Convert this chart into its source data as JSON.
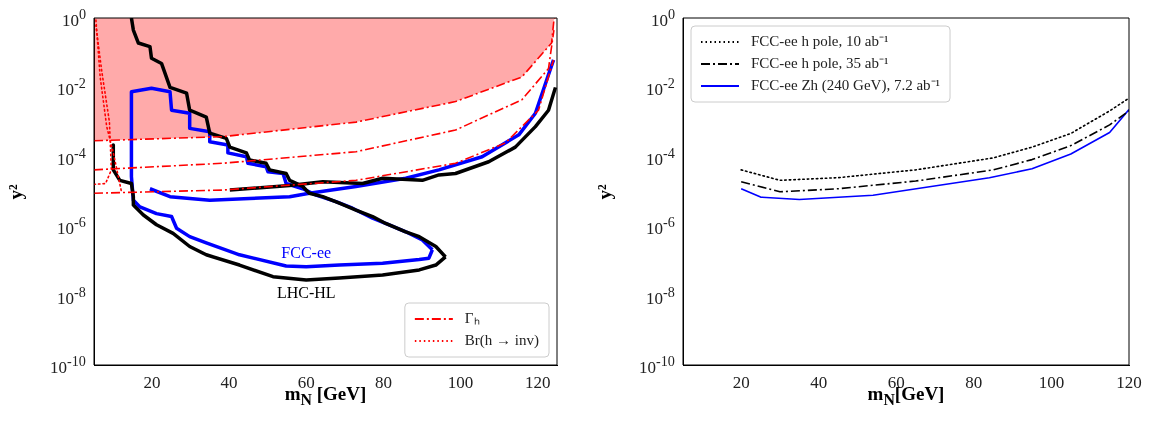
{
  "chart_data": [
    {
      "type": "line",
      "xlabel": "m$_{N}$ [GeV]",
      "ylabel": "y²",
      "log": "y",
      "legend": "bottom right",
      "xlim": [
        5,
        125
      ],
      "xticks": [
        20,
        40,
        60,
        80,
        100,
        120
      ],
      "ylim": [
        1e-10,
        1
      ],
      "yticks": [
        {
          "value": 1,
          "label": "10$^{0}$"
        },
        {
          "value": 0.01,
          "label": "10$^{-2}$"
        },
        {
          "value": 0.0001,
          "label": "10$^{-4}$"
        },
        {
          "value": 1e-06,
          "label": "10$^{-6}$"
        },
        {
          "value": 1e-08,
          "label": "10$^{-8}$"
        },
        {
          "value": 1e-10,
          "label": "10$^{-10}$"
        }
      ],
      "annotations": [
        {
          "text": "FCC-ee",
          "x": 60,
          "y": 6.8e-08
        },
        {
          "text": "LHC-HL",
          "x": 60,
          "y": 2.8e-08
        }
      ],
      "series": [
        {
          "name": "Γₕ",
          "color": "#ff0000",
          "line_style": "dashdot",
          "x": [
            5,
            38.3,
            72.9,
            98.7,
            115.9,
            123.6,
            124.2,
            124.5
          ],
          "values": [
            0.00029,
            0.00038,
            0.001,
            0.0039,
            0.02,
            0.19,
            0.87,
            1
          ],
          "lower": [
            0.00029,
            0.00038,
            0.001,
            0.0039,
            0.02,
            0.19,
            0.87,
            1
          ],
          "upper": [
            1,
            1,
            1,
            1,
            1,
            1,
            1,
            1
          ]
        },
        {
          "color": "#ff0000",
          "line_style": "dashdot",
          "x": [
            5,
            38.3,
            72.9,
            98.7,
            115.9,
            122.8,
            124.2
          ],
          "values": [
            4.2e-05,
            6.5e-05,
            0.00014,
            0.00059,
            0.0044,
            0.035,
            0.45
          ]
        },
        {
          "color": "#ff0000",
          "line_style": "dashdot",
          "x": [
            5,
            38.3,
            72.9,
            98.7,
            111.6,
            120.2,
            124.1
          ],
          "values": [
            8.9e-06,
            1.1e-05,
            2.1e-05,
            6.5e-05,
            0.00025,
            0.0022,
            0.062
          ]
        },
        {
          "name": "Br(h → inv)",
          "color": "#ff0000",
          "line_style": "dotted",
          "x": [
            5.5,
            6.6,
            8.3,
            10,
            11.3,
            12.2
          ],
          "values": [
            0.87,
            0.02,
            0.00074,
            0.00013,
            2.7e-05,
            8.9e-06
          ]
        },
        {
          "color": "#ff0000",
          "line_style": "dotted",
          "x": [
            5,
            8,
            9.5,
            9,
            7,
            5.5
          ],
          "values": [
            1.6e-05,
            1.7e-05,
            4.2e-05,
            0.001,
            0.03,
            0.6
          ]
        },
        {
          "color": "#000000",
          "line_style": "solid",
          "x": [
            14.7,
            15.2,
            16.5,
            19.5,
            19.9,
            22.5,
            24.7,
            29,
            29.8,
            34.1,
            35,
            39.3,
            40.2,
            44.5,
            45.3,
            49.6,
            50.5,
            54.8,
            55.7,
            59.1,
            60.8,
            64.3,
            68.6,
            72.9,
            77.2,
            80.6,
            85.8,
            89.3,
            93.6,
            96.1
          ],
          "values": [
            1,
            0.45,
            0.19,
            0.15,
            0.069,
            0.049,
            0.01,
            0.0068,
            0.0022,
            0.0014,
            0.00048,
            0.00034,
            0.00019,
            0.00013,
            8.1e-05,
            6.5e-05,
            4.2e-05,
            3.3e-05,
            2.1e-05,
            1.4e-05,
            8.9e-06,
            7.1e-06,
            4.6e-06,
            2.9e-06,
            1.9e-06,
            1.2e-06,
            6.9e-07,
            5e-07,
            2.6e-07,
            1.3e-07
          ]
        },
        {
          "color": "#000000",
          "line_style": "solid",
          "x": [
            10,
            10,
            11.7,
            14.7,
            15.2,
            15.2,
            17.8,
            21.2,
            25.5,
            29.8,
            34.1,
            42.7,
            51.4,
            60,
            68.6,
            79.8,
            89.3,
            93.6,
            96.1
          ],
          "values": [
            0.00022,
            4.2e-05,
            2.1e-05,
            1.7e-05,
            7.1e-06,
            4.1e-06,
            2.1e-06,
            1.1e-06,
            6.2e-07,
            2.6e-07,
            1.5e-07,
            7.6e-08,
            3.5e-08,
            2.8e-08,
            3.2e-08,
            3.9e-08,
            5.5e-08,
            7.6e-08,
            1.3e-07
          ]
        },
        {
          "color": "#000000",
          "line_style": "solid",
          "x": [
            40.2,
            55.7,
            64.3,
            74.6,
            79.8,
            90.1,
            94.4,
            98.7,
            107.3,
            114.2,
            119.4,
            122.8,
            124.6
          ],
          "values": [
            1.1e-05,
            1.5e-05,
            1.9e-05,
            1.7e-05,
            2.4e-05,
            2.1e-05,
            3e-05,
            3.3e-05,
            7.2e-05,
            0.00019,
            0.00074,
            0.0022,
            0.01
          ]
        },
        {
          "color": "#0000ff",
          "line_style": "solid",
          "x": [
            14.7,
            19.9,
            24.7,
            25.1,
            29.8,
            29.8,
            35,
            35,
            39.7,
            39.7,
            44.5,
            44.9,
            49.6,
            50.1,
            54,
            54.8,
            59.1,
            62.6,
            67.7,
            72,
            77.2,
            81.5,
            85.8,
            90.1,
            92.7
          ],
          "values": [
            0.0075,
            0.0094,
            0.0075,
            0.0022,
            0.0018,
            0.00066,
            0.00053,
            0.00027,
            0.00022,
            0.00013,
            0.0001,
            6.5e-05,
            5.2e-05,
            3.7e-05,
            3.3e-05,
            1.7e-05,
            1.2e-05,
            7.9e-06,
            5.1e-06,
            3.3e-06,
            1.7e-06,
            1.1e-06,
            6.9e-07,
            4e-07,
            2.1e-07
          ]
        },
        {
          "color": "#0000ff",
          "line_style": "solid",
          "x": [
            14.7,
            14.7,
            15.2,
            16.9,
            21.2,
            25.1,
            26.4,
            29.8,
            34.1,
            42.7,
            54.8,
            60,
            68.6,
            79.8,
            89.3,
            91.8,
            92.7
          ],
          "values": [
            0.0075,
            2.7e-05,
            5.6e-06,
            3.6e-06,
            2.3e-06,
            1.9e-06,
            8.7e-07,
            5e-07,
            3.3e-07,
            1.5e-07,
            7.1e-08,
            6.8e-08,
            7.6e-08,
            8.6e-08,
            1.1e-07,
            1.2e-07,
            2.1e-07
          ]
        },
        {
          "color": "#0000ff",
          "line_style": "solid",
          "x": [
            19.5,
            24.7,
            35,
            45.3,
            55.7,
            60.8,
            72.9,
            85.8,
            94.4,
            105.6,
            115.1,
            119.4,
            124.1
          ],
          "values": [
            1.2e-05,
            7.1e-06,
            5.6e-06,
            6.3e-06,
            7.1e-06,
            8.9e-06,
            1.4e-05,
            2.4e-05,
            4.2e-05,
            0.0001,
            0.00043,
            0.0018,
            0.062
          ]
        }
      ]
    },
    {
      "type": "line",
      "xlabel": "m$_{N}$[GeV]",
      "ylabel": "y²",
      "log": "y",
      "legend": "top left",
      "xlim": [
        5,
        120
      ],
      "xticks": [
        20,
        40,
        60,
        80,
        100,
        120
      ],
      "ylim": [
        1e-10,
        1
      ],
      "yticks": [
        {
          "value": 1,
          "label": "10$^{0}$"
        },
        {
          "value": 0.01,
          "label": "10$^{-2}$"
        },
        {
          "value": 0.0001,
          "label": "10$^{-4}$"
        },
        {
          "value": 1e-06,
          "label": "10$^{-6}$"
        },
        {
          "value": 1e-08,
          "label": "10$^{-8}$"
        },
        {
          "value": 1e-10,
          "label": "10$^{-10}$"
        }
      ],
      "series": [
        {
          "name": "FCC-ee h pole, 10 ab⁻¹",
          "color": "#000000",
          "line_style": "dotted",
          "x": [
            20,
            30,
            45,
            65,
            85,
            95,
            105,
            115,
            120
          ],
          "values": [
            4.2e-05,
            2.1e-05,
            2.5e-05,
            4.2e-05,
            9.3e-05,
            0.00019,
            0.00047,
            0.0021,
            0.0049
          ]
        },
        {
          "name": "FCC-ee h pole, 35 ab⁻¹",
          "color": "#000000",
          "line_style": "dashdot",
          "x": [
            20,
            30,
            45,
            65,
            85,
            95,
            105,
            115,
            120
          ],
          "values": [
            1.9e-05,
            9.8e-06,
            1.2e-05,
            2e-05,
            4.2e-05,
            8.3e-05,
            0.00021,
            0.00083,
            0.0021
          ]
        },
        {
          "name": "FCC-ee Zh (240 GeV), 7.2 ab⁻¹",
          "color": "#0000ff",
          "line_style": "solid",
          "x": [
            20,
            25,
            35,
            54,
            84,
            95,
            105,
            115,
            120
          ],
          "values": [
            1.2e-05,
            6.9e-06,
            5.9e-06,
            7.8e-06,
            2.5e-05,
            4.5e-05,
            0.00012,
            0.0005,
            0.0023
          ]
        }
      ]
    }
  ]
}
